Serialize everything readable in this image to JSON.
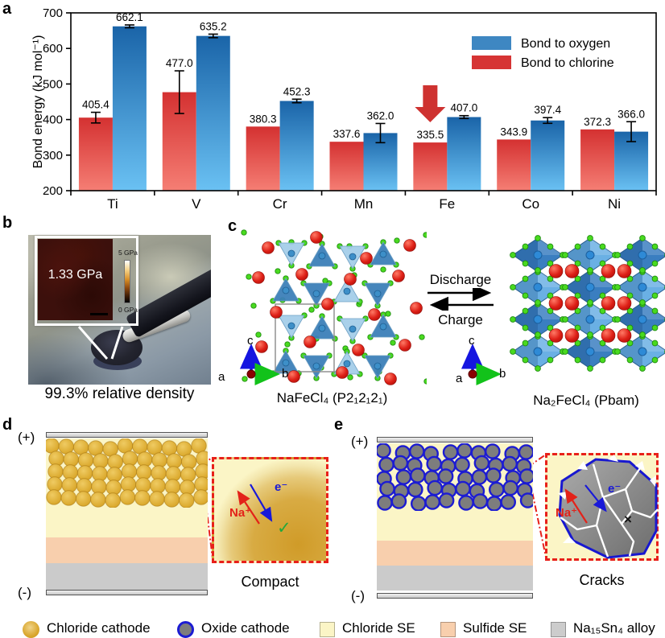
{
  "panel_labels": {
    "a": "a",
    "b": "b",
    "c": "c",
    "d": "d",
    "e": "e"
  },
  "chart_data": {
    "type": "bar",
    "categories": [
      "Ti",
      "V",
      "Cr",
      "Mn",
      "Fe",
      "Co",
      "Ni"
    ],
    "series": [
      {
        "name": "Bond to chlorine",
        "swatch": "#d63434",
        "color_top": "#d43131",
        "color_bottom": "#f57e74",
        "values": [
          405.4,
          477.0,
          380.3,
          337.6,
          335.5,
          343.9,
          372.3
        ],
        "errors": [
          15,
          60,
          0,
          0,
          0,
          0,
          0
        ]
      },
      {
        "name": "Bond to oxygen",
        "swatch": "#3e87c2",
        "color_top": "#1a64a8",
        "color_bottom": "#6ac1f3",
        "values": [
          662.1,
          635.2,
          452.3,
          362.0,
          407.0,
          397.4,
          366.0
        ],
        "errors": [
          4,
          5,
          5,
          27,
          4,
          8,
          28
        ]
      }
    ],
    "legend_order": [
      1,
      0
    ],
    "ylabel": "Bond energy (kJ mol⁻¹)",
    "ylim": [
      200,
      700
    ],
    "yticks": [
      200,
      300,
      400,
      500,
      600,
      700
    ],
    "annotation": {
      "type": "block-arrow-down",
      "category": "Fe",
      "color": "#ce3230"
    }
  },
  "panel_b": {
    "modulus_value": "1.33 GPa",
    "scale_top": "5 GPa",
    "scale_bottom": "0 GPa",
    "caption": "99.3% relative density"
  },
  "panel_c": {
    "left_formula": "NaFeCl₄ (P2₁2₁2₁)",
    "right_formula": "Na₂FeCl₄ (Pbam)",
    "forward": "Discharge",
    "backward": "Charge",
    "axis_a": "a",
    "axis_b": "b",
    "axis_c": "c"
  },
  "panel_d": {
    "positive": "(+)",
    "negative": "(-)",
    "ion": "Na⁺",
    "electron": "e⁻",
    "mark": "✓",
    "caption": "Compact"
  },
  "panel_e": {
    "positive": "(+)",
    "negative": "(-)",
    "ion": "Na⁺",
    "electron": "e⁻",
    "mark": "×",
    "caption": "Cracks"
  },
  "legend": {
    "items": [
      {
        "label": "Chloride cathode",
        "swatch": "chloride-circle",
        "color": "#d9a62c"
      },
      {
        "label": "Oxide cathode",
        "swatch": "oxide-circle",
        "color": "#7d7d7d",
        "ring": "#1c1cd2"
      },
      {
        "label": "Chloride SE",
        "swatch": "square",
        "color": "#fbf5c6"
      },
      {
        "label": "Sulfide SE",
        "swatch": "square",
        "color": "#f8cfad"
      },
      {
        "label": "Na₁₅Sn₄ alloy",
        "swatch": "square",
        "color": "#cccccc"
      }
    ]
  }
}
